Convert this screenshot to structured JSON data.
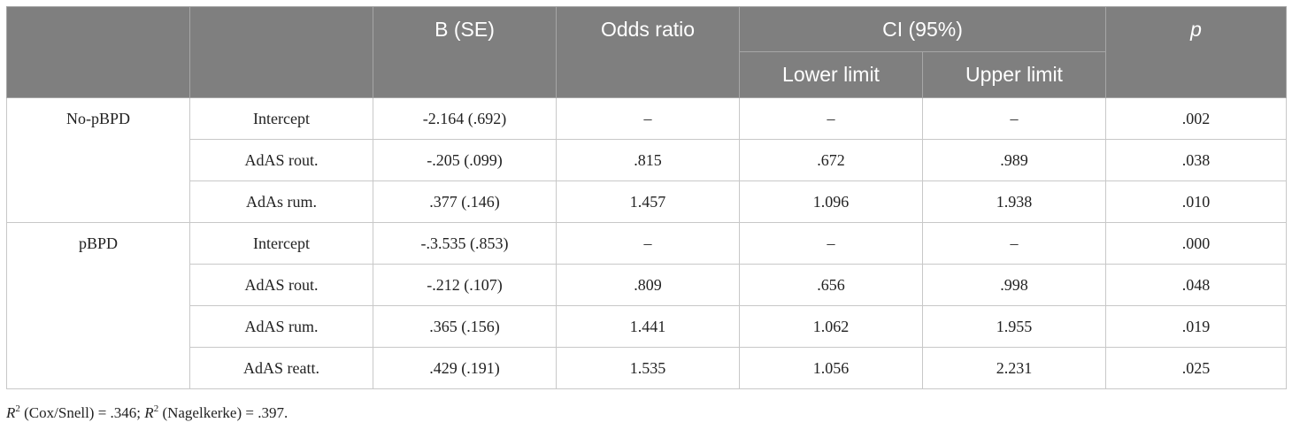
{
  "header": {
    "col1": "",
    "col2": "",
    "b_se": "B (SE)",
    "odds_ratio": "Odds ratio",
    "ci": "CI (95%)",
    "lower_limit": "Lower limit",
    "upper_limit": "Upper limit",
    "p": "p"
  },
  "groups": [
    {
      "label": "No-pBPD",
      "rows": [
        {
          "predictor": "Intercept",
          "b_se": "-2.164 (.692)",
          "odds_ratio": "–",
          "lower": "–",
          "upper": "–",
          "p": ".002"
        },
        {
          "predictor": "AdAS rout.",
          "b_se": "-.205 (.099)",
          "odds_ratio": ".815",
          "lower": ".672",
          "upper": ".989",
          "p": ".038"
        },
        {
          "predictor": "AdAs rum.",
          "b_se": ".377 (.146)",
          "odds_ratio": "1.457",
          "lower": "1.096",
          "upper": "1.938",
          "p": ".010"
        }
      ]
    },
    {
      "label": "pBPD",
      "rows": [
        {
          "predictor": "Intercept",
          "b_se": "-.3.535 (.853)",
          "odds_ratio": "–",
          "lower": "–",
          "upper": "–",
          "p": ".000"
        },
        {
          "predictor": "AdAS rout.",
          "b_se": "-.212 (.107)",
          "odds_ratio": ".809",
          "lower": ".656",
          "upper": ".998",
          "p": ".048"
        },
        {
          "predictor": "AdAS rum.",
          "b_se": ".365 (.156)",
          "odds_ratio": "1.441",
          "lower": "1.062",
          "upper": "1.955",
          "p": ".019"
        },
        {
          "predictor": "AdAS reatt.",
          "b_se": ".429 (.191)",
          "odds_ratio": "1.535",
          "lower": "1.056",
          "upper": "2.231",
          "p": ".025"
        }
      ]
    }
  ],
  "footnote": {
    "r1_symbol": "R",
    "r1_sup": "2",
    "r1_text": " (Cox/Snell) = .346; ",
    "r2_symbol": "R",
    "r2_sup": "2",
    "r2_text": " (Nagelkerke) = .397."
  }
}
